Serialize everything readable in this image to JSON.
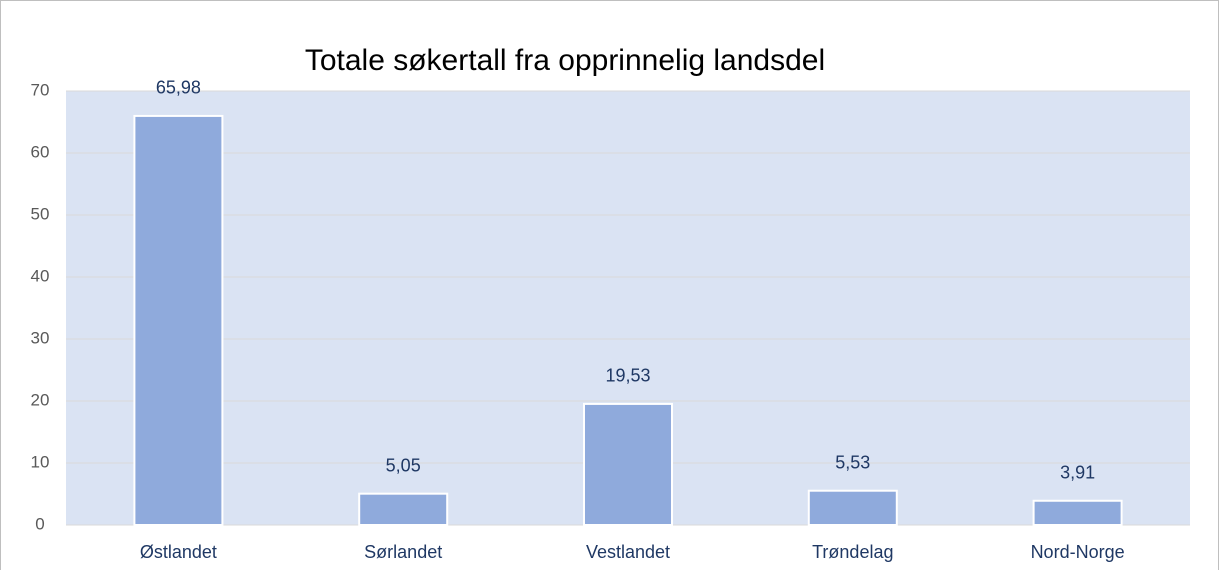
{
  "chart_data": {
    "type": "bar",
    "title": "Totale søkertall fra opprinnelig landsdel",
    "categories": [
      "Østlandet",
      "Sørlandet",
      "Vestlandet",
      "Trøndelag",
      "Nord-Norge"
    ],
    "values": [
      65.98,
      5.05,
      19.53,
      5.53,
      3.91
    ],
    "value_labels": [
      "65,98",
      "5,05",
      "19,53",
      "5,53",
      "3,91"
    ],
    "color": "#8faadc",
    "ylim": [
      0,
      70
    ],
    "yticks": [
      0,
      10,
      20,
      30,
      40,
      50,
      60,
      70
    ],
    "grid": true
  }
}
